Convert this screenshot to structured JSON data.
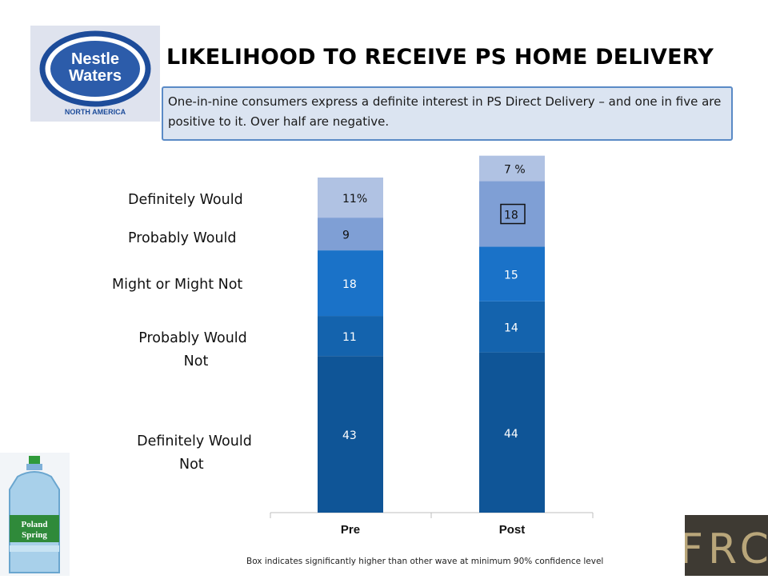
{
  "header": {
    "title": "LIKELIHOOD TO RECEIVE PS HOME DELIVERY",
    "callout": "One-in-nine consumers express a definite interest in PS Direct Delivery – and one in five are positive to it.  Over half are negative."
  },
  "logo": {
    "brand_line1": "Nestle",
    "brand_line2": "Waters",
    "sub": "NORTH AMERICA"
  },
  "chart_data": {
    "type": "bar",
    "stacked": true,
    "categories": [
      "Pre",
      "Post"
    ],
    "series": [
      {
        "name": "Definitely Would Not",
        "values": [
          43,
          44
        ],
        "labels": [
          "43",
          "44"
        ],
        "color": "#0f5597"
      },
      {
        "name": "Probably Would Not",
        "values": [
          11,
          14
        ],
        "labels": [
          "11",
          "14"
        ],
        "color": "#1463ad"
      },
      {
        "name": "Might or Might Not",
        "values": [
          18,
          15
        ],
        "labels": [
          "18",
          "15"
        ],
        "color": "#1a72c8"
      },
      {
        "name": "Probably Would",
        "values": [
          9,
          18
        ],
        "labels": [
          "9",
          "18"
        ],
        "color": "#7f9fd5"
      },
      {
        "name": "Definitely Would",
        "values": [
          11,
          7
        ],
        "labels": [
          "11%",
          "7 %"
        ],
        "color": "#b0c2e3"
      }
    ],
    "boxed": [
      {
        "series": "Probably Would",
        "category": "Post"
      }
    ],
    "legend_labels": [
      {
        "text": "Definitely Would",
        "lines": [
          "Definitely Would"
        ]
      },
      {
        "text": "Probably Would",
        "lines": [
          "Probably Would"
        ]
      },
      {
        "text": "Might or Might Not",
        "lines": [
          "Might or Might Not"
        ]
      },
      {
        "text": "Probably Would Not",
        "lines": [
          "Probably Would",
          "Not"
        ]
      },
      {
        "text": "Definitely Would Not",
        "lines": [
          "Definitely Would",
          "Not"
        ]
      }
    ],
    "legend_placement": "left"
  },
  "footnote": "Box indicates significantly higher than other wave at minimum 90% confidence level",
  "product": {
    "brand_line1": "Poland",
    "brand_line2": "Spring"
  },
  "badge": {
    "text": "FRC"
  },
  "colors": {
    "accent_border": "#5a8ac6",
    "callout_bg": "#dbe4f1"
  }
}
